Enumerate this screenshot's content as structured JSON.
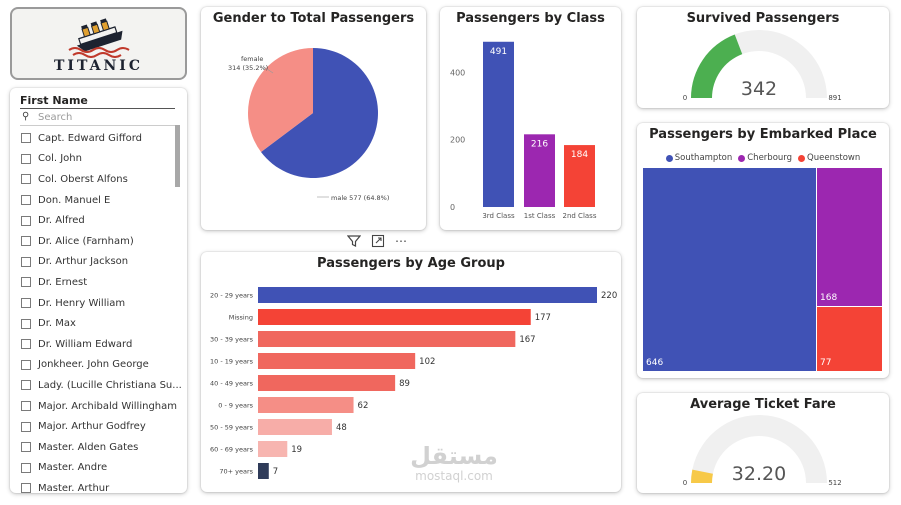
{
  "logo": {
    "text": "TITANIC"
  },
  "slicer": {
    "title": "First Name",
    "search_placeholder": "Search",
    "items": [
      "Capt. Edward Gifford",
      "Col. John",
      "Col. Oberst Alfons",
      "Don. Manuel E",
      "Dr. Alfred",
      "Dr. Alice (Farnham)",
      "Dr. Arthur Jackson",
      "Dr. Ernest",
      "Dr. Henry William",
      "Dr. Max",
      "Dr. William Edward",
      "Jonkheer. John George",
      "Lady. (Lucille Christiana Su...",
      "Major. Archibald Willingham",
      "Major. Arthur Godfrey",
      "Master. Alden Gates",
      "Master. Andre",
      "Master. Arthur"
    ]
  },
  "gender_chart": {
    "title": "Gender to Total Passengers",
    "chart_data": {
      "type": "pie",
      "slices": [
        {
          "label": "male",
          "value": 577,
          "pct": "64.8%",
          "text": "male 577 (64.8%)",
          "color": "#4052B5"
        },
        {
          "label": "female",
          "value": 314,
          "pct": "35.2%",
          "text_label": "female",
          "text_value": "314 (35.2%)",
          "color": "#F58E86"
        }
      ]
    }
  },
  "class_chart": {
    "title": "Passengers by Class",
    "chart_data": {
      "type": "bar",
      "categories": [
        "3rd Class",
        "1st Class",
        "2nd Class"
      ],
      "values": [
        491,
        216,
        184
      ],
      "labels": [
        "491",
        "216",
        "184"
      ],
      "colors": [
        "#4052B5",
        "#9C27B0",
        "#F44336"
      ],
      "ylim": [
        0,
        520
      ],
      "yticks": [
        0,
        200,
        400
      ],
      "ytick_labels": [
        "0",
        "200",
        "400"
      ]
    }
  },
  "age_chart": {
    "title": "Passengers by Age Group",
    "chart_data": {
      "type": "bar",
      "orientation": "horizontal",
      "categories": [
        "20 - 29 years",
        "Missing",
        "30 - 39 years",
        "10 - 19 years",
        "40 - 49 years",
        "0 - 9 years",
        "50 - 59 years",
        "60 - 69 years",
        "70+ years"
      ],
      "values": [
        220,
        177,
        167,
        102,
        89,
        62,
        48,
        19,
        7
      ],
      "labels": [
        "220",
        "177",
        "167",
        "102",
        "89",
        "62",
        "48",
        "19",
        "7"
      ],
      "colors": [
        "#4052B5",
        "#F44336",
        "#F0675E",
        "#F0675E",
        "#F0675E",
        "#F58E86",
        "#F7ADA8",
        "#F7B5B0",
        "#2F3B59"
      ],
      "xlim": [
        0,
        220
      ]
    }
  },
  "visual_toolbar": {
    "filter_icon": "filter-icon",
    "focus_icon": "focus-mode-icon",
    "more_icon": "more-options-icon",
    "more_label": "⋯"
  },
  "survived": {
    "title": "Survived Passengers",
    "value": 342,
    "value_text": "342",
    "min": 0,
    "min_text": "0",
    "max": 891,
    "max_text": "891",
    "fill_color": "#4CAF50",
    "track_color": "#F0F0F0"
  },
  "embarked": {
    "title": "Passengers by Embarked Place",
    "chart_data": {
      "type": "treemap",
      "items": [
        {
          "label": "Southampton",
          "value": 646,
          "value_text": "646",
          "color": "#4052B5"
        },
        {
          "label": "Cherbourg",
          "value": 168,
          "value_text": "168",
          "color": "#9C27B0"
        },
        {
          "label": "Queenstown",
          "value": 77,
          "value_text": "77",
          "color": "#F44336"
        }
      ]
    }
  },
  "fare": {
    "title": "Average Ticket Fare",
    "value": 32.2,
    "value_text": "32.20",
    "min": 0,
    "min_text": "0",
    "max": 512,
    "max_text": "512",
    "fill_color": "#F7C948",
    "track_color": "#F0F0F0"
  },
  "watermark": {
    "arabic": "مستقل",
    "latin": "mostaql.com"
  }
}
